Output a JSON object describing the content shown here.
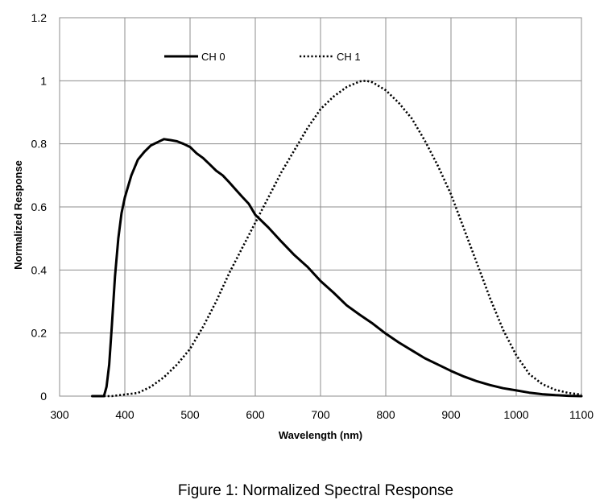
{
  "chart_data": {
    "type": "line",
    "title": "",
    "xlabel": "Wavelength (nm)",
    "ylabel": "Normalized Response",
    "xlim": [
      300,
      1100
    ],
    "ylim": [
      0,
      1.2
    ],
    "xticks": [
      300,
      400,
      500,
      600,
      700,
      800,
      900,
      1000,
      1100
    ],
    "yticks": [
      0,
      0.2,
      0.4,
      0.6,
      0.8,
      1,
      1.2
    ],
    "xtick_labels": [
      "300",
      "400",
      "500",
      "600",
      "700",
      "800",
      "900",
      "1000",
      "1100"
    ],
    "ytick_labels": [
      "0",
      "0.2",
      "0.4",
      "0.6",
      "0.8",
      "1",
      "1.2"
    ],
    "grid": true,
    "legend_position": "top-center",
    "series": [
      {
        "name": "CH 0",
        "style": "solid",
        "color": "#000000",
        "x": [
          350,
          368,
          372,
          376,
          380,
          385,
          390,
          395,
          400,
          410,
          420,
          430,
          440,
          450,
          460,
          470,
          480,
          490,
          500,
          510,
          520,
          530,
          540,
          550,
          560,
          570,
          580,
          590,
          600,
          620,
          640,
          660,
          680,
          700,
          720,
          740,
          760,
          780,
          800,
          820,
          840,
          860,
          880,
          900,
          920,
          940,
          960,
          980,
          1000,
          1020,
          1040,
          1060,
          1080,
          1100
        ],
        "y": [
          0,
          0,
          0.03,
          0.1,
          0.22,
          0.38,
          0.5,
          0.58,
          0.63,
          0.7,
          0.75,
          0.775,
          0.795,
          0.805,
          0.815,
          0.812,
          0.808,
          0.8,
          0.79,
          0.77,
          0.755,
          0.735,
          0.715,
          0.7,
          0.678,
          0.655,
          0.632,
          0.61,
          0.575,
          0.535,
          0.49,
          0.447,
          0.41,
          0.365,
          0.328,
          0.288,
          0.258,
          0.23,
          0.198,
          0.17,
          0.145,
          0.12,
          0.1,
          0.08,
          0.062,
          0.047,
          0.035,
          0.025,
          0.018,
          0.011,
          0.006,
          0.003,
          0.001,
          0
        ]
      },
      {
        "name": "CH 1",
        "style": "dotted",
        "color": "#000000",
        "x": [
          350,
          380,
          400,
          420,
          440,
          460,
          480,
          500,
          520,
          540,
          560,
          580,
          600,
          620,
          640,
          660,
          680,
          700,
          720,
          740,
          760,
          770,
          780,
          800,
          820,
          840,
          860,
          880,
          900,
          920,
          940,
          960,
          980,
          1000,
          1020,
          1040,
          1060,
          1080,
          1100
        ],
        "y": [
          0,
          0,
          0.005,
          0.01,
          0.03,
          0.06,
          0.1,
          0.15,
          0.22,
          0.3,
          0.39,
          0.47,
          0.55,
          0.63,
          0.71,
          0.78,
          0.85,
          0.91,
          0.95,
          0.98,
          0.998,
          1.0,
          0.995,
          0.97,
          0.93,
          0.88,
          0.81,
          0.73,
          0.64,
          0.53,
          0.42,
          0.31,
          0.21,
          0.13,
          0.07,
          0.038,
          0.02,
          0.01,
          0.005
        ]
      }
    ]
  },
  "caption": "Figure 1: Normalized Spectral Response"
}
